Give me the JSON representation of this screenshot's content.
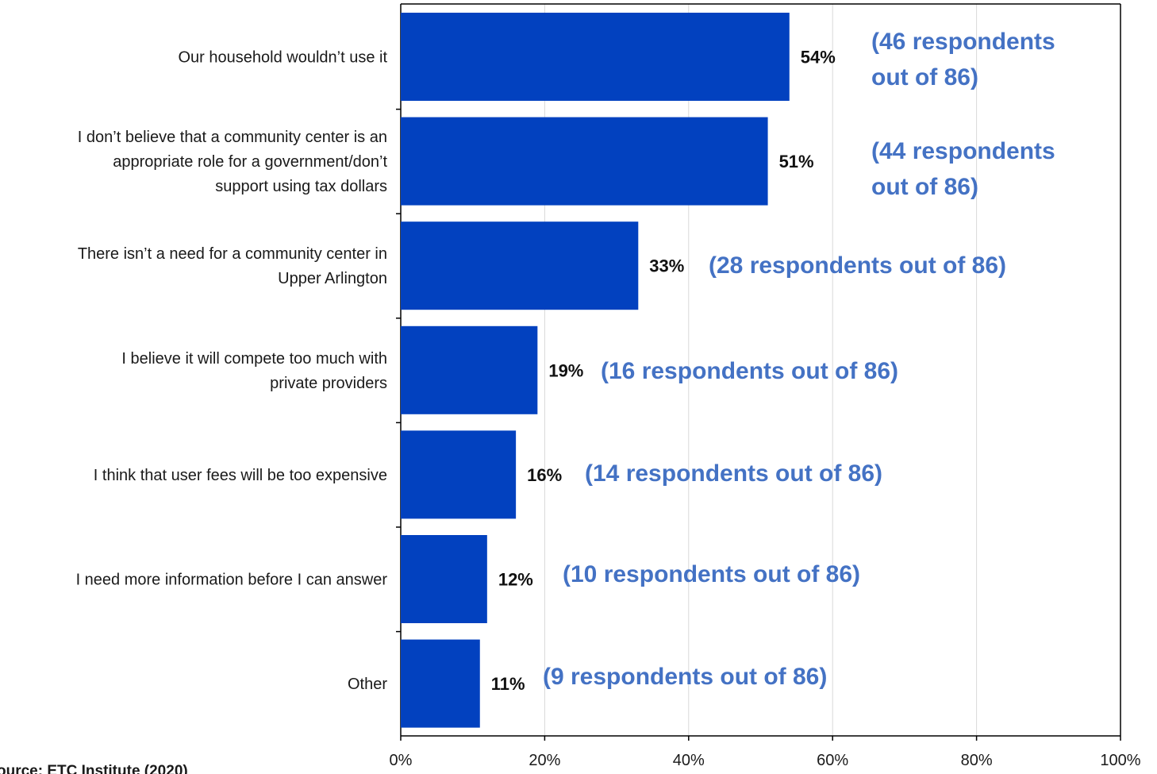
{
  "colors": {
    "bar": "#0241BF",
    "annotation": "#4472C4",
    "grid": "#d9d9d9",
    "axis": "#000000"
  },
  "source": "ource: ETC Institute (2020)",
  "chart_data": {
    "type": "bar",
    "orientation": "horizontal",
    "title": "",
    "xlabel": "",
    "ylabel": "",
    "xlim": [
      0,
      100
    ],
    "grid": true,
    "legend": "none",
    "x_ticks": [
      "0%",
      "20%",
      "40%",
      "60%",
      "80%",
      "100%"
    ],
    "categories": [
      [
        "Our household wouldn’t use it"
      ],
      [
        "I don’t believe that a community center is an",
        "appropriate role for a government/don’t",
        "support using tax dollars"
      ],
      [
        "There isn’t a need for a community center in",
        "Upper Arlington"
      ],
      [
        "I believe it will compete too much with",
        "private providers"
      ],
      [
        "I think that user fees will be too expensive"
      ],
      [
        "I need more information before I can answer"
      ],
      [
        "Other"
      ]
    ],
    "values": [
      54,
      51,
      33,
      19,
      16,
      12,
      11
    ],
    "value_labels": [
      "54%",
      "51%",
      "33%",
      "19%",
      "16%",
      "12%",
      "11%"
    ],
    "annotations": [
      [
        "(46 respondents",
        "out of 86)"
      ],
      [
        "(44 respondents",
        "out of 86)"
      ],
      [
        "(28 respondents out of 86)"
      ],
      [
        "(16 respondents out of 86)"
      ],
      [
        "(14 respondents out of 86)"
      ],
      [
        "(10 respondents out of 86)"
      ],
      [
        "(9 respondents out of 86)"
      ]
    ]
  }
}
